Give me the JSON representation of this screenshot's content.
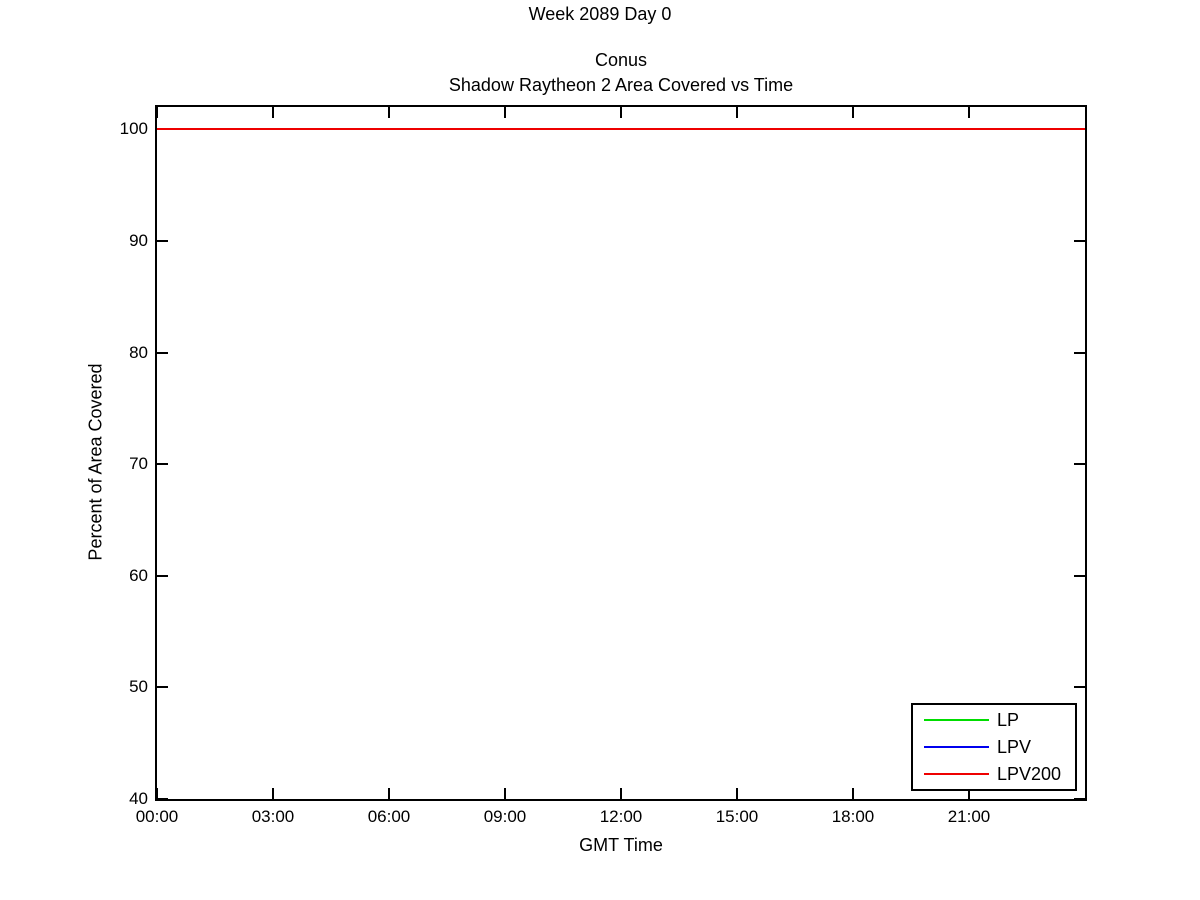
{
  "figure": {
    "suptitle": "Week 2089 Day 0"
  },
  "chart_data": {
    "type": "line",
    "title_lines": [
      "Conus",
      "Shadow Raytheon 2 Area Covered vs Time"
    ],
    "xlabel": "GMT Time",
    "ylabel": "Percent of Area Covered",
    "x_tick_labels": [
      "00:00",
      "03:00",
      "06:00",
      "09:00",
      "12:00",
      "15:00",
      "18:00",
      "21:00"
    ],
    "x_tick_hours": [
      0,
      3,
      6,
      9,
      12,
      15,
      18,
      21
    ],
    "xlim_hours": [
      0,
      24
    ],
    "y_ticks": [
      40,
      50,
      60,
      70,
      80,
      90,
      100
    ],
    "ylim": [
      40,
      102
    ],
    "grid": false,
    "background": "#ffffff",
    "axis_color": "#000000",
    "legend_position": "bottom-right",
    "series": [
      {
        "name": "LP",
        "color": "#00dd00",
        "x_hours": [
          0,
          24
        ],
        "y_percent": [
          100,
          100
        ]
      },
      {
        "name": "LPV",
        "color": "#0000ee",
        "x_hours": [
          0,
          24
        ],
        "y_percent": [
          100,
          100
        ]
      },
      {
        "name": "LPV200",
        "color": "#ee0000",
        "x_hours": [
          0,
          24
        ],
        "y_percent": [
          100,
          100
        ]
      }
    ]
  }
}
